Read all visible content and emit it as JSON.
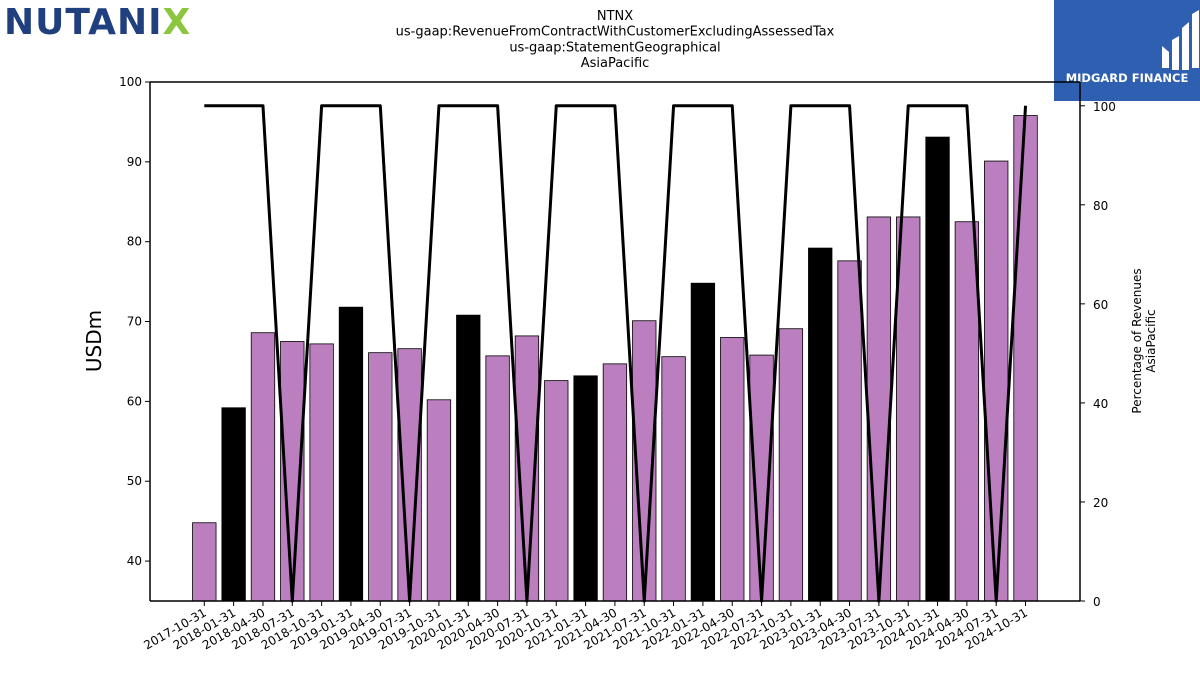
{
  "logo": {
    "left": "NUTANI",
    "x": "X"
  },
  "brand": {
    "name": "MIDGARD FINANCE",
    "color": "#2f5fb0"
  },
  "colors": {
    "bar_default": "#bb7fbf",
    "bar_highlight": "#000000",
    "line": "#000000"
  },
  "chart_data": {
    "type": "bar",
    "title_lines": [
      "NTNX",
      "us-gaap:RevenueFromContractWithCustomerExcludingAssessedTax",
      "us-gaap:StatementGeographical",
      "AsiaPacific"
    ],
    "ylabel": "USDm",
    "y2label_lines": [
      "Percentage of Revenues",
      "AsiaPacific"
    ],
    "ylim": [
      35,
      100
    ],
    "y2lim": [
      0,
      104.8
    ],
    "yticks": [
      40,
      50,
      60,
      70,
      80,
      90,
      100
    ],
    "y2ticks": [
      0,
      20,
      40,
      60,
      80,
      100
    ],
    "categories": [
      "2017-10-31",
      "2018-01-31",
      "2018-04-30",
      "2018-07-31",
      "2018-10-31",
      "2019-01-31",
      "2019-04-30",
      "2019-07-31",
      "2019-10-31",
      "2020-01-31",
      "2020-04-30",
      "2020-07-31",
      "2020-10-31",
      "2021-01-31",
      "2021-04-30",
      "2021-07-31",
      "2021-10-31",
      "2022-01-31",
      "2022-04-30",
      "2022-07-31",
      "2022-10-31",
      "2023-01-31",
      "2023-04-30",
      "2023-07-31",
      "2023-10-31",
      "2024-01-31",
      "2024-04-30",
      "2024-07-31",
      "2024-10-31"
    ],
    "values": [
      44.8,
      59.2,
      68.6,
      67.5,
      67.2,
      71.8,
      66.1,
      66.6,
      60.2,
      70.8,
      65.7,
      68.2,
      62.6,
      63.2,
      64.7,
      70.1,
      65.6,
      74.8,
      68.0,
      65.8,
      69.1,
      79.2,
      77.6,
      83.1,
      83.1,
      93.1,
      82.5,
      90.1,
      95.8
    ],
    "highlight": [
      false,
      true,
      false,
      false,
      false,
      true,
      false,
      false,
      false,
      true,
      false,
      false,
      false,
      true,
      false,
      false,
      false,
      true,
      false,
      false,
      false,
      true,
      false,
      false,
      false,
      true,
      false,
      false,
      false
    ],
    "series": [
      {
        "values": [
          100,
          100,
          100,
          0,
          100,
          100,
          100,
          0,
          100,
          100,
          100,
          0,
          100,
          100,
          100,
          0,
          100,
          100,
          100,
          0,
          100,
          100,
          100,
          0,
          100,
          100,
          100,
          0,
          100
        ]
      }
    ]
  }
}
